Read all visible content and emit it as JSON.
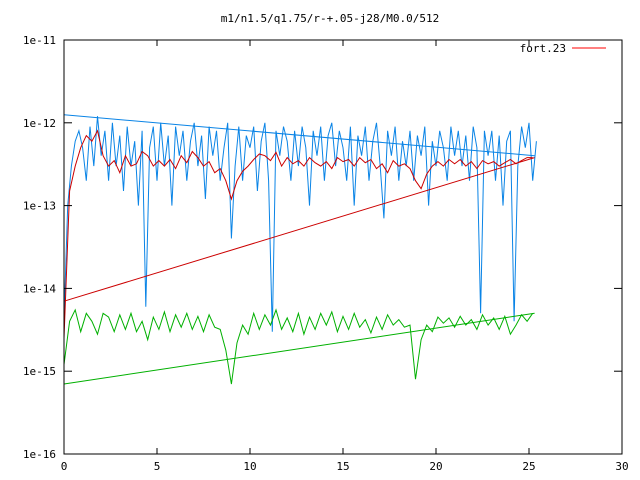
{
  "chart_data": {
    "type": "line",
    "title": "m1/n1.5/q1.75/r-+.05-j28/M0.0/512",
    "xlabel": "",
    "ylabel": "",
    "x_scale": "linear",
    "y_scale": "log",
    "xlim": [
      0,
      30
    ],
    "ylim": [
      1e-16,
      1e-11
    ],
    "x_ticks": [
      "0",
      "5",
      "10",
      "15",
      "20",
      "25",
      "30"
    ],
    "y_ticks": [
      "1e-16",
      "1e-15",
      "1e-14",
      "1e-13",
      "1e-12",
      "1e-11"
    ],
    "grid": false,
    "legend_position": "top-right",
    "legend": [
      {
        "label": "fort.23",
        "color": "#ff0000"
      }
    ],
    "colors": {
      "blue": "#0a84e6",
      "red": "#cc0000",
      "green": "#00b000",
      "axis": "#000000"
    },
    "series": [
      {
        "color": "#0a84e6",
        "x": [
          0,
          0.2,
          0.4,
          0.6,
          0.8,
          1,
          1.2,
          1.4,
          1.6,
          1.8,
          2,
          2.2,
          2.4,
          2.6,
          2.8,
          3,
          3.2,
          3.4,
          3.6,
          3.8,
          4,
          4.2,
          4.4,
          4.6,
          4.8,
          5,
          5.2,
          5.4,
          5.6,
          5.8,
          6,
          6.2,
          6.4,
          6.6,
          6.8,
          7,
          7.2,
          7.4,
          7.6,
          7.8,
          8,
          8.2,
          8.4,
          8.6,
          8.8,
          9,
          9.2,
          9.4,
          9.6,
          9.8,
          10,
          10.2,
          10.4,
          10.6,
          10.8,
          11,
          11.2,
          11.4,
          11.6,
          11.8,
          12,
          12.2,
          12.4,
          12.6,
          12.8,
          13,
          13.2,
          13.4,
          13.6,
          13.8,
          14,
          14.2,
          14.4,
          14.6,
          14.8,
          15,
          15.2,
          15.4,
          15.6,
          15.8,
          16,
          16.2,
          16.4,
          16.6,
          16.8,
          17,
          17.2,
          17.4,
          17.6,
          17.8,
          18,
          18.2,
          18.4,
          18.6,
          18.8,
          19,
          19.2,
          19.4,
          19.6,
          19.8,
          20,
          20.2,
          20.4,
          20.6,
          20.8,
          21,
          21.2,
          21.4,
          21.6,
          21.8,
          22,
          22.2,
          22.4,
          22.6,
          22.8,
          23,
          23.2,
          23.4,
          23.6,
          23.8,
          24,
          24.2,
          24.4,
          24.6,
          24.8,
          25,
          25.2,
          25.4
        ],
        "y": [
          4e-15,
          1e-13,
          3e-13,
          6e-13,
          8e-13,
          5e-13,
          2e-13,
          9e-13,
          3e-13,
          1.2e-12,
          4e-13,
          8e-13,
          2e-13,
          1e-12,
          3e-13,
          7e-13,
          1.5e-13,
          9e-13,
          3e-13,
          6e-13,
          1e-13,
          8e-13,
          6e-15,
          5e-13,
          9e-13,
          2e-13,
          1e-12,
          3e-13,
          7e-13,
          1e-13,
          9e-13,
          4e-13,
          8e-13,
          2e-13,
          6e-13,
          1e-12,
          3e-13,
          7e-13,
          1.2e-13,
          9e-13,
          4e-13,
          8e-13,
          2e-13,
          5e-13,
          1e-12,
          4e-14,
          3e-13,
          9e-13,
          2e-13,
          7e-13,
          5e-13,
          9e-13,
          1.5e-13,
          6e-13,
          1e-12,
          2e-13,
          3e-15,
          8e-13,
          4e-13,
          9e-13,
          6e-13,
          2e-13,
          8e-13,
          3e-13,
          9e-13,
          5e-13,
          1e-13,
          8e-13,
          4e-13,
          9e-13,
          2e-13,
          7e-13,
          1e-12,
          3e-13,
          8e-13,
          5e-13,
          2e-13,
          9e-13,
          1e-13,
          7e-13,
          4e-13,
          9e-13,
          2e-13,
          6e-13,
          1e-12,
          3e-13,
          7e-14,
          8e-13,
          4e-13,
          9e-13,
          2e-13,
          6e-13,
          3e-13,
          8e-13,
          2e-13,
          7e-13,
          4e-13,
          9e-13,
          1e-13,
          6e-13,
          3e-13,
          8e-13,
          5e-13,
          2e-13,
          9e-13,
          4e-13,
          8e-13,
          3e-13,
          7e-13,
          2e-13,
          9e-13,
          5e-13,
          5e-15,
          8e-13,
          4e-13,
          8e-13,
          2e-13,
          7e-13,
          1e-13,
          6e-13,
          8e-13,
          4e-15,
          3e-13,
          9e-13,
          5e-13,
          1e-12,
          2e-13,
          6e-13
        ]
      },
      {
        "color": "#0a84e6",
        "x": [
          0,
          25.3
        ],
        "y": [
          1.25e-12,
          4e-13
        ]
      },
      {
        "color": "#cc0000",
        "x": [
          0,
          0.3,
          0.6,
          0.9,
          1.2,
          1.5,
          1.8,
          2.1,
          2.4,
          2.7,
          3,
          3.3,
          3.6,
          3.9,
          4.2,
          4.5,
          4.8,
          5.1,
          5.4,
          5.7,
          6,
          6.3,
          6.6,
          6.9,
          7.2,
          7.5,
          7.8,
          8.1,
          8.4,
          8.7,
          9,
          9.3,
          9.6,
          9.9,
          10.2,
          10.5,
          10.8,
          11.1,
          11.4,
          11.7,
          12,
          12.3,
          12.6,
          12.9,
          13.2,
          13.5,
          13.8,
          14.1,
          14.4,
          14.7,
          15,
          15.3,
          15.6,
          15.9,
          16.2,
          16.5,
          16.8,
          17.1,
          17.4,
          17.7,
          18,
          18.3,
          18.6,
          18.9,
          19.2,
          19.5,
          19.8,
          20.1,
          20.4,
          20.7,
          21,
          21.3,
          21.6,
          21.9,
          22.2,
          22.5,
          22.8,
          23.1,
          23.4,
          23.7,
          24,
          24.3,
          24.6,
          24.9,
          25.2
        ],
        "y": [
          2.5e-15,
          1.5e-13,
          3e-13,
          5e-13,
          7e-13,
          6e-13,
          8e-13,
          4e-13,
          3e-13,
          3.5e-13,
          2.5e-13,
          4e-13,
          3e-13,
          3.2e-13,
          4.5e-13,
          4e-13,
          3e-13,
          3.5e-13,
          3e-13,
          3.6e-13,
          2.8e-13,
          4e-13,
          3.3e-13,
          4.5e-13,
          3.8e-13,
          3e-13,
          3.4e-13,
          2.5e-13,
          2.8e-13,
          2e-13,
          1.2e-13,
          2e-13,
          2.6e-13,
          3e-13,
          3.6e-13,
          4.2e-13,
          4e-13,
          3.5e-13,
          4.4e-13,
          3e-13,
          3.8e-13,
          3.2e-13,
          3.5e-13,
          3e-13,
          3.8e-13,
          3.3e-13,
          3e-13,
          3.4e-13,
          2.8e-13,
          3.8e-13,
          3.4e-13,
          3.6e-13,
          3e-13,
          3.8e-13,
          3.3e-13,
          3.6e-13,
          2.8e-13,
          3.2e-13,
          2.5e-13,
          3.5e-13,
          3e-13,
          3.2e-13,
          2.8e-13,
          2e-13,
          1.6e-13,
          2.4e-13,
          3e-13,
          3.4e-13,
          3e-13,
          3.6e-13,
          3.2e-13,
          3.6e-13,
          3e-13,
          3.4e-13,
          2.8e-13,
          3.5e-13,
          3.2e-13,
          3.4e-13,
          3e-13,
          3.3e-13,
          3.6e-13,
          3.2e-13,
          3.5e-13,
          3.8e-13,
          3.8e-13
        ]
      },
      {
        "color": "#cc0000",
        "x": [
          0,
          25.3
        ],
        "y": [
          7e-15,
          3.8e-13
        ]
      },
      {
        "color": "#00b000",
        "x": [
          0,
          0.3,
          0.6,
          0.9,
          1.2,
          1.5,
          1.8,
          2.1,
          2.4,
          2.7,
          3,
          3.3,
          3.6,
          3.9,
          4.2,
          4.5,
          4.8,
          5.1,
          5.4,
          5.7,
          6,
          6.3,
          6.6,
          6.9,
          7.2,
          7.5,
          7.8,
          8.1,
          8.4,
          8.7,
          9,
          9.3,
          9.6,
          9.9,
          10.2,
          10.5,
          10.8,
          11.1,
          11.4,
          11.7,
          12,
          12.3,
          12.6,
          12.9,
          13.2,
          13.5,
          13.8,
          14.1,
          14.4,
          14.7,
          15,
          15.3,
          15.6,
          15.9,
          16.2,
          16.5,
          16.8,
          17.1,
          17.4,
          17.7,
          18,
          18.3,
          18.6,
          18.9,
          19.2,
          19.5,
          19.8,
          20.1,
          20.4,
          20.7,
          21,
          21.3,
          21.6,
          21.9,
          22.2,
          22.5,
          22.8,
          23.1,
          23.4,
          23.7,
          24,
          24.3,
          24.6,
          24.9,
          25.2
        ],
        "y": [
          1.2e-15,
          4e-15,
          5.5e-15,
          3e-15,
          5e-15,
          4e-15,
          2.8e-15,
          5e-15,
          4.5e-15,
          3e-15,
          4.8e-15,
          3.2e-15,
          5e-15,
          3e-15,
          4e-15,
          2.4e-15,
          4.5e-15,
          3.2e-15,
          5.2e-15,
          3e-15,
          4.8e-15,
          3.4e-15,
          5e-15,
          3.2e-15,
          4.6e-15,
          3e-15,
          4.8e-15,
          3.4e-15,
          3.2e-15,
          1.8e-15,
          7e-16,
          2.2e-15,
          3.6e-15,
          2.8e-15,
          5e-15,
          3.2e-15,
          4.8e-15,
          3.6e-15,
          5.5e-15,
          3.2e-15,
          4.4e-15,
          3e-15,
          5e-15,
          2.8e-15,
          4.5e-15,
          3.2e-15,
          5e-15,
          3.6e-15,
          5.2e-15,
          3e-15,
          4.6e-15,
          3.2e-15,
          5e-15,
          3.4e-15,
          4.2e-15,
          2.9e-15,
          4.5e-15,
          3.2e-15,
          4.8e-15,
          3.6e-15,
          4.2e-15,
          3.4e-15,
          3.6e-15,
          8e-16,
          2.4e-15,
          3.6e-15,
          3e-15,
          4.5e-15,
          3.8e-15,
          4.4e-15,
          3.4e-15,
          4.6e-15,
          3.6e-15,
          4.2e-15,
          3.2e-15,
          4.8e-15,
          3.6e-15,
          4.4e-15,
          3.2e-15,
          4.6e-15,
          2.8e-15,
          3.6e-15,
          4.8e-15,
          4e-15,
          5e-15
        ]
      },
      {
        "color": "#00b000",
        "x": [
          0,
          25.3
        ],
        "y": [
          7e-16,
          5e-15
        ]
      }
    ]
  }
}
